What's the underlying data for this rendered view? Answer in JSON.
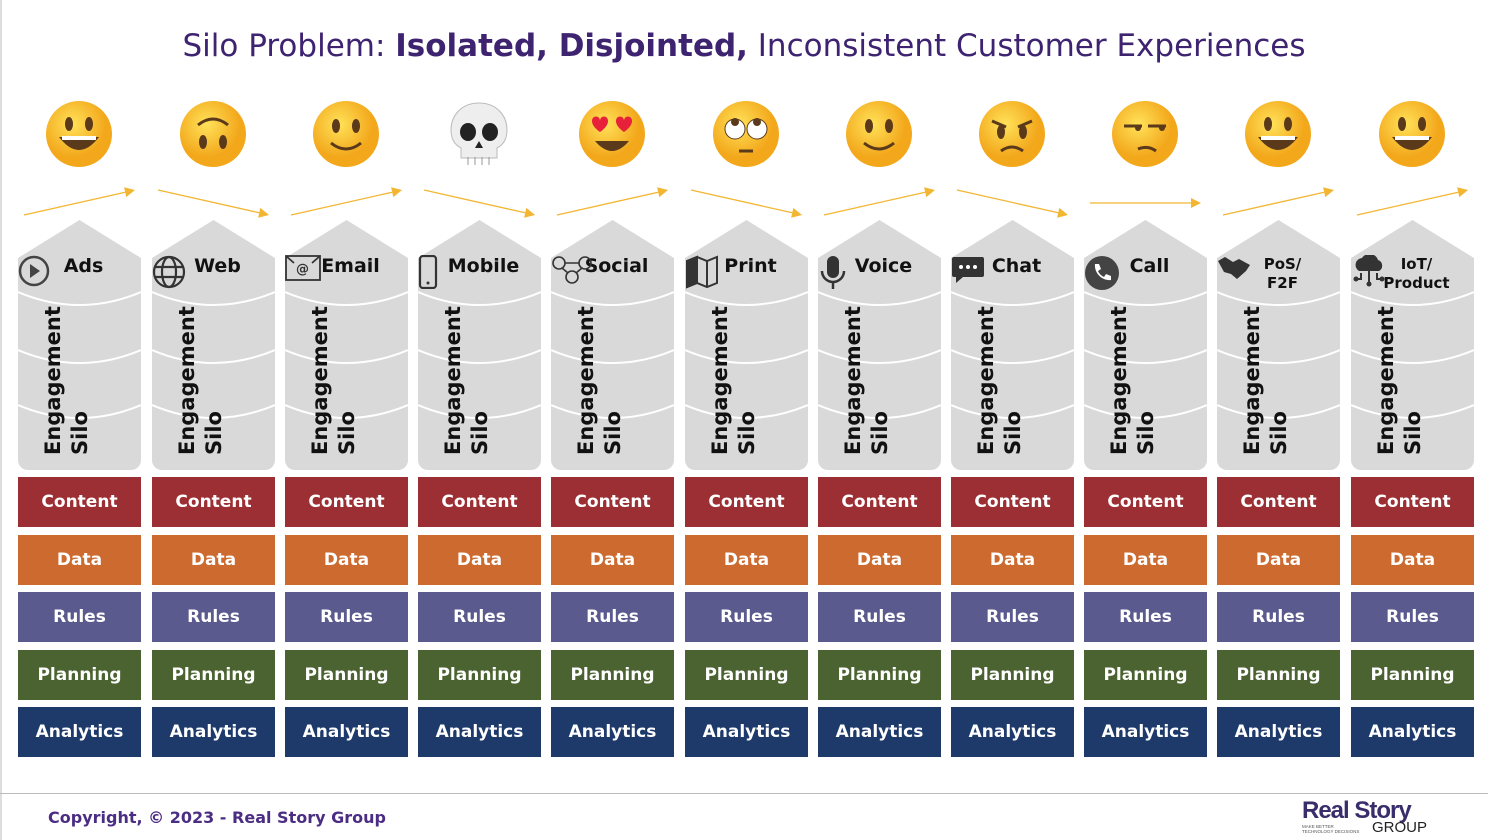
{
  "title": {
    "prefix": "Silo Problem: ",
    "bold": "Isolated, Disjointed,",
    "suffix": " Inconsistent Customer Experiences"
  },
  "silo_label": [
    "Engagement",
    "Silo"
  ],
  "bands": [
    {
      "label": "Content",
      "color": "#9b2f33"
    },
    {
      "label": "Data",
      "color": "#cc6a2f"
    },
    {
      "label": "Rules",
      "color": "#5b5a8e"
    },
    {
      "label": "Planning",
      "color": "#4a6330"
    },
    {
      "label": "Analytics",
      "color": "#1d3a6b"
    }
  ],
  "channels": [
    {
      "name": "Ads",
      "icon": "play-icon",
      "emoji": "grinning",
      "arrow": "up"
    },
    {
      "name": "Web",
      "icon": "globe-icon",
      "emoji": "upside-down",
      "arrow": "down"
    },
    {
      "name": "Email",
      "icon": "email-icon",
      "emoji": "slight-smile",
      "arrow": "up"
    },
    {
      "name": "Mobile",
      "icon": "mobile-phone-icon",
      "emoji": "skull",
      "arrow": "down"
    },
    {
      "name": "Social",
      "icon": "social-network-icon",
      "emoji": "heart-eyes",
      "arrow": "up"
    },
    {
      "name": "Print",
      "icon": "print-map-icon",
      "emoji": "eye-roll",
      "arrow": "down"
    },
    {
      "name": "Voice",
      "icon": "microphone-icon",
      "emoji": "slight-smile",
      "arrow": "up"
    },
    {
      "name": "Chat",
      "icon": "chat-bubble-icon",
      "emoji": "angry",
      "arrow": "down"
    },
    {
      "name": "Call",
      "icon": "phone-icon",
      "emoji": "unamused",
      "arrow": "flat"
    },
    {
      "name": "PoS/\nF2F",
      "icon": "handshake-icon",
      "emoji": "grinning",
      "arrow": "up"
    },
    {
      "name": "IoT/\nProduct",
      "icon": "iot-cloud-icon",
      "emoji": "grinning",
      "arrow": "up"
    }
  ],
  "colors": {
    "title": "#3d2370",
    "silo": "#d9d9d9",
    "arrow": "#f2b632",
    "footer": "#4b2d83"
  },
  "footer": {
    "copyright": "Copyright, © 2023 - Real Story Group",
    "logo": "Real Story GROUP",
    "logo_tagline": "MAKE BETTER TECHNOLOGY DECISIONS"
  }
}
